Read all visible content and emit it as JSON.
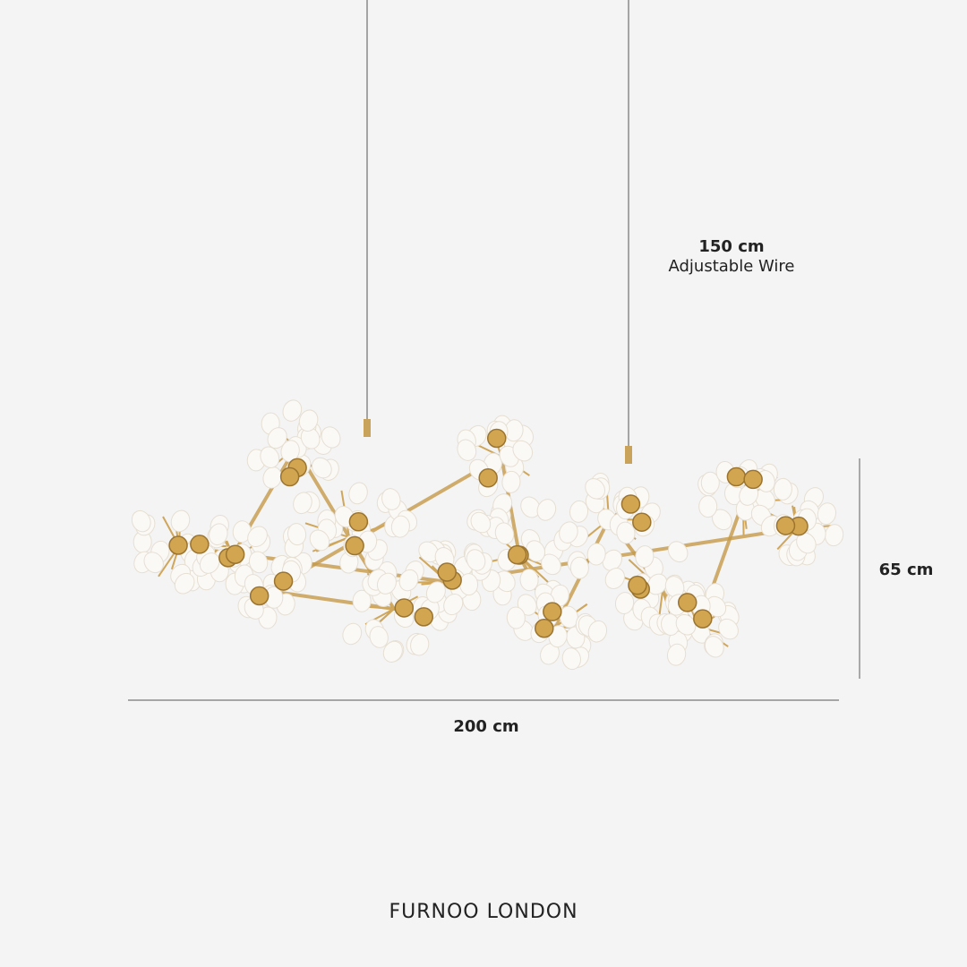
{
  "wire": {
    "length": "150 cm",
    "note": "Adjustable Wire"
  },
  "height": "65 cm",
  "width": "200 cm",
  "brand": "FURNOO LONDON"
}
